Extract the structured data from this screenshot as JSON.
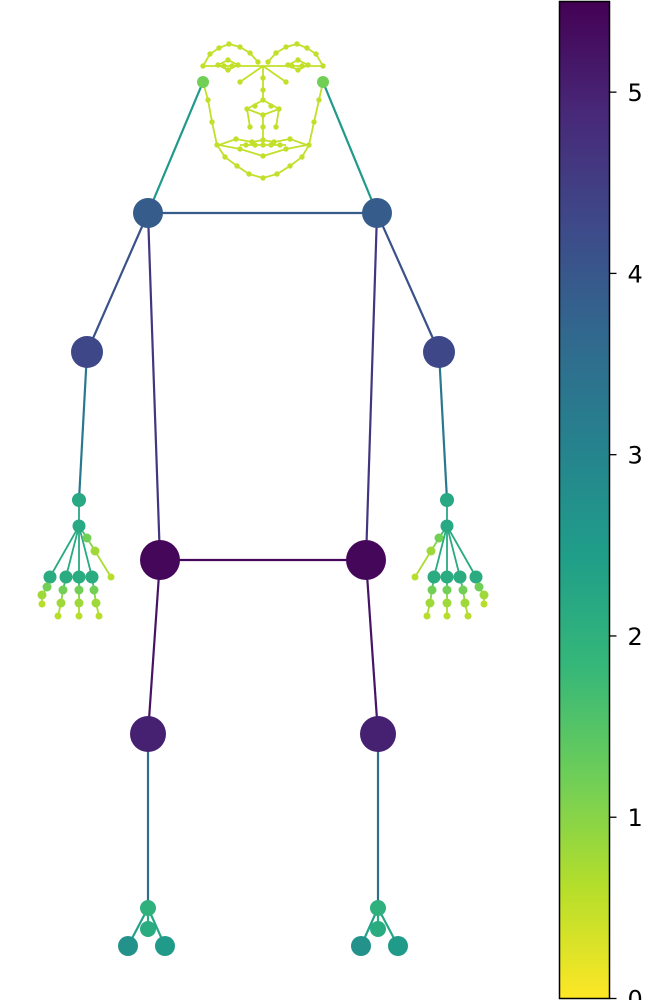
{
  "figure": {
    "colormap": "viridis_r",
    "colormap_stops": [
      "#fde725",
      "#b5de2b",
      "#6ece58",
      "#35b779",
      "#1f9e89",
      "#26828e",
      "#31688e",
      "#3e4989",
      "#482878",
      "#440154"
    ],
    "background": "#ffffff"
  },
  "colorbar": {
    "range": [
      0,
      5.5
    ],
    "ticks": [
      {
        "value": 0,
        "label": "0"
      },
      {
        "value": 1,
        "label": "1"
      },
      {
        "value": 2,
        "label": "2"
      },
      {
        "value": 3,
        "label": "3"
      },
      {
        "value": 4,
        "label": "4"
      },
      {
        "value": 5,
        "label": "5"
      }
    ]
  },
  "skeleton": {
    "body_joints": [
      {
        "id": "shoulder-left",
        "value": 3.9
      },
      {
        "id": "shoulder-right",
        "value": 3.9
      },
      {
        "id": "elbow-left",
        "value": 4.3
      },
      {
        "id": "elbow-right",
        "value": 4.3
      },
      {
        "id": "wrist-left",
        "value": 2.3
      },
      {
        "id": "wrist-right",
        "value": 2.3
      },
      {
        "id": "hip-left",
        "value": 5.4
      },
      {
        "id": "hip-right",
        "value": 5.4
      },
      {
        "id": "knee-left",
        "value": 5.0
      },
      {
        "id": "knee-right",
        "value": 5.0
      },
      {
        "id": "ankle-left",
        "value": 2.0
      },
      {
        "id": "ankle-right",
        "value": 2.0
      },
      {
        "id": "heel-left",
        "value": 2.1
      },
      {
        "id": "heel-right",
        "value": 2.1
      },
      {
        "id": "toe-outer-left",
        "value": 2.7
      },
      {
        "id": "toe-inner-left",
        "value": 2.5
      },
      {
        "id": "toe-inner-right",
        "value": 2.7
      },
      {
        "id": "toe-outer-right",
        "value": 2.5
      },
      {
        "id": "face-left",
        "value": 1.2
      },
      {
        "id": "face-right",
        "value": 1.2
      }
    ],
    "hand_value_range": [
      0.6,
      2.2
    ],
    "face_value": 0.5
  }
}
